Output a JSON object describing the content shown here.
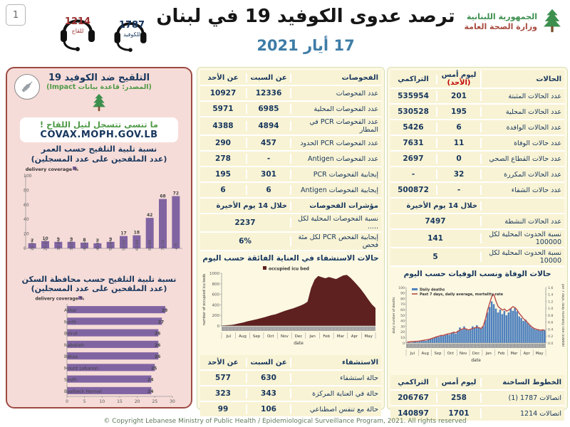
{
  "page": {
    "number": "1",
    "footer": "© Copyright Lebanese Ministry of Public Health / Epidemiological Surveillance Program, 2021. All rights reserved"
  },
  "header": {
    "title": "ترصد عدوى الكوفيد 19 في لبنان",
    "date": "17 أيار 2021",
    "hotline_covid": {
      "number": "1787",
      "label": "للكوفيد"
    },
    "hotline_vaccine": {
      "number": "1214",
      "label": "للقاح"
    },
    "logo": {
      "line1": "الجمهورية اللبنانية",
      "line2": "وزارة الصحة العامة"
    }
  },
  "vaccination_panel": {
    "title": "التلقيح ضد الكوفيد 19",
    "source": "(المصدر: قاعدة بيانات Impact)",
    "reminder_line1": "ما تنسى تتسجل لنيل اللقاح !",
    "reminder_line2": "COVAX.MOPH.GOV.LB"
  },
  "tests_table": {
    "headers": [
      "الفحوصات",
      "عن السبت",
      "عن الأحد"
    ],
    "rows": [
      {
        "label": "عدد الفحوصات",
        "sat": "12336",
        "sun": "10927"
      },
      {
        "label": "عدد الفحوصات المحلية",
        "sat": "6985",
        "sun": "5971"
      },
      {
        "label": "عدد الفحوصات PCR في المطار",
        "sat": "4894",
        "sun": "4388"
      },
      {
        "label": "عدد الفحوصات PCR الحدود",
        "sat": "457",
        "sun": "290"
      },
      {
        "label": "عدد الفحوصات Antigen",
        "sat": "-",
        "sun": "278"
      },
      {
        "label": "إيجابية الفحوصات PCR",
        "sat": "301",
        "sun": "195"
      },
      {
        "label": "إيجابية الفحوصات Antigen",
        "sat": "6",
        "sun": "6"
      }
    ],
    "indicator_header": {
      "label": "مؤشرات الفحوصات",
      "value": "خلال 14 يوم الأخيرة"
    },
    "indicator_rows": [
      {
        "label": "نسبة الفحوصات المحلية لكل .....",
        "value": "2237"
      },
      {
        "label": "إيجابية الفحص PCR لكل مئة فحص",
        "value": "6%"
      }
    ]
  },
  "cases_table": {
    "headers": {
      "col1": "الحالات",
      "col2a": "ليوم أمس",
      "col2b": "(الأحد)",
      "col3": "التراكمي"
    },
    "rows": [
      {
        "label": "عدد الحالات المثبتة",
        "yesterday": "201",
        "cumulative": "535954"
      },
      {
        "label": "عدد الحالات المحلية",
        "yesterday": "195",
        "cumulative": "530528"
      },
      {
        "label": "عدد الحالات الوافدة",
        "yesterday": "6",
        "cumulative": "5426"
      },
      {
        "label": "عدد حالات الوفاة",
        "yesterday": "11",
        "cumulative": "7631"
      },
      {
        "label": "عدد حالات القطاع الصحي",
        "yesterday": "0",
        "cumulative": "2697"
      },
      {
        "label": "عدد الحالات المكررة",
        "yesterday": "32",
        "cumulative": "-"
      },
      {
        "label": "عدد حالات الشفاء",
        "yesterday": "-",
        "cumulative": "500872"
      }
    ],
    "period_header": "خلال 14 يوم الأخيرة",
    "period_rows": [
      {
        "label": "عدد الحالات النشطة",
        "value": "7497"
      },
      {
        "label": "نسبة الحدوث المحلية لكل 100000",
        "value": "141"
      },
      {
        "label": "نسبة الحدوث المحلية لكل 10000",
        "value": "5"
      }
    ]
  },
  "hospital_table": {
    "headers": [
      "الاستشفاء",
      "عن السبت",
      "عن الأحد"
    ],
    "rows": [
      {
        "label": "حالة استشفاء",
        "sat": "630",
        "sun": "577"
      },
      {
        "label": "حالة في العناية المركزة",
        "sat": "343",
        "sun": "323"
      },
      {
        "label": "حالة مع تنفس اصطناعي",
        "sat": "106",
        "sun": "99"
      }
    ]
  },
  "hotlines_table": {
    "headers": [
      "الخطوط الساخنة",
      "ليوم أمس",
      "التراكمي"
    ],
    "rows": [
      {
        "label": "اتصالات 1787 (1)",
        "yesterday": "258",
        "cumulative": "206767"
      },
      {
        "label": "اتصالات 1214",
        "yesterday": "1701",
        "cumulative": "140897"
      }
    ]
  },
  "colors": {
    "accent_purple": "#8064a2",
    "icu_maroon": "#5f2120",
    "deaths_blue": "#4f81bd",
    "mortality_red": "#b94a48",
    "navy_text": "#17365d",
    "red_accent": "#c00000",
    "pink_panel": "#f6dcd8",
    "cream_panel": "#fcf8e2",
    "green_text": "#4e9a46"
  },
  "chart_data": [
    {
      "id": "vaccination_by_age",
      "type": "bar",
      "title": "نسبة تلبية التلقيح حسب العمر",
      "subtitle": "(عدد الملقحين على عدد المسجلين)",
      "legend": "% delivery coverage",
      "categories": [
        "20-24",
        "25-29",
        "30-34",
        "35-39",
        "40-44",
        "45-49",
        "50-54",
        "55-59",
        "60-64",
        "65-69",
        "70-74",
        "75+"
      ],
      "values": [
        7,
        10,
        9,
        9,
        8,
        7,
        9,
        17,
        18,
        42,
        68,
        72
      ],
      "ylim": [
        0,
        100
      ],
      "yticks": [
        0,
        20,
        40,
        60,
        80,
        100
      ],
      "bar_color": "#8064a2"
    },
    {
      "id": "vaccination_by_governorate",
      "type": "bar-horizontal",
      "title": "نسبة تلبية التلقيح حسب محافظة السكن",
      "subtitle": "(عدد الملقحين على عدد المسجلين)",
      "legend": "% delivery coverage",
      "categories": [
        "Akkar",
        "North",
        "Beirut",
        "Nabatieh",
        "Bekaa",
        "Mount Lebanon",
        "South",
        "Baalbeck Hermel"
      ],
      "values": [
        28,
        27,
        26,
        26,
        26,
        25,
        24,
        24
      ],
      "xlim": [
        0,
        30
      ],
      "xticks": [
        0,
        5,
        10,
        15,
        20,
        25,
        30
      ],
      "bar_color": "#8064a2"
    },
    {
      "id": "icu_occupancy",
      "type": "area",
      "title": "حالات الاستشفاء في العناية الفائقة حسب اليوم",
      "legend": "occupied icu bed",
      "xlabel": "date",
      "ylabel": "number of occupied icu beds",
      "months": [
        "Jul",
        "Aug",
        "Sep",
        "Oct",
        "Nov",
        "Dec",
        "Jan",
        "Feb",
        "Mar",
        "Apr",
        "May"
      ],
      "ylim": [
        0,
        1000
      ],
      "yticks": [
        0,
        200,
        400,
        600,
        800,
        1000
      ],
      "values": [
        8,
        12,
        16,
        22,
        35,
        50,
        65,
        85,
        100,
        115,
        130,
        148,
        165,
        185,
        205,
        220,
        245,
        270,
        295,
        315,
        335,
        360,
        385,
        415,
        460,
        720,
        880,
        950,
        925,
        905,
        930,
        910,
        890,
        925,
        960,
        970,
        915,
        845,
        770,
        690,
        600,
        500,
        410,
        340
      ],
      "area_color": "#5f2120"
    },
    {
      "id": "daily_deaths_mortality",
      "type": "bar-line",
      "title": "حالات الوفاة ونسب الوفيات حسب اليوم",
      "legend_bar": "Daily deaths",
      "legend_line": "Past 7 days, daily average, mortality rate",
      "xlabel": "date",
      "ylabel_left": "daily number of deaths",
      "ylabel_right": "per 7 days, daily mortality rate /100000",
      "months": [
        "Jul",
        "Aug",
        "Sep",
        "Oct",
        "Nov",
        "Dec",
        "Jan",
        "Feb",
        "Mar",
        "Apr",
        "May"
      ],
      "ylim_left": [
        0,
        100
      ],
      "ylim_right": [
        0,
        1.6
      ],
      "bars": [
        1,
        2,
        1,
        2,
        3,
        2,
        3,
        4,
        5,
        4,
        6,
        7,
        8,
        10,
        12,
        11,
        14,
        13,
        14,
        16,
        15,
        18,
        20,
        17,
        22,
        28,
        24,
        30,
        26,
        23,
        25,
        30,
        27,
        32,
        28,
        26,
        30,
        42,
        55,
        65,
        75,
        70,
        62,
        55,
        60,
        52,
        58,
        50,
        55,
        62,
        58,
        63,
        57,
        48,
        45,
        40,
        42,
        36,
        32,
        28,
        26,
        24,
        25,
        22,
        24,
        23
      ],
      "line": [
        0.03,
        0.03,
        0.04,
        0.04,
        0.05,
        0.05,
        0.06,
        0.07,
        0.08,
        0.09,
        0.1,
        0.12,
        0.14,
        0.16,
        0.18,
        0.2,
        0.22,
        0.22,
        0.24,
        0.26,
        0.27,
        0.29,
        0.31,
        0.3,
        0.34,
        0.38,
        0.4,
        0.42,
        0.4,
        0.38,
        0.4,
        0.42,
        0.44,
        0.46,
        0.44,
        0.42,
        0.5,
        0.7,
        0.95,
        1.15,
        1.35,
        1.4,
        1.2,
        1.05,
        1.0,
        0.95,
        0.98,
        0.92,
        0.95,
        1.0,
        1.05,
        1.02,
        0.95,
        0.85,
        0.78,
        0.7,
        0.65,
        0.58,
        0.52,
        0.46,
        0.42,
        0.4,
        0.38,
        0.37,
        0.38,
        0.37
      ],
      "bar_color": "#4f81bd",
      "line_color": "#b94a48"
    }
  ]
}
